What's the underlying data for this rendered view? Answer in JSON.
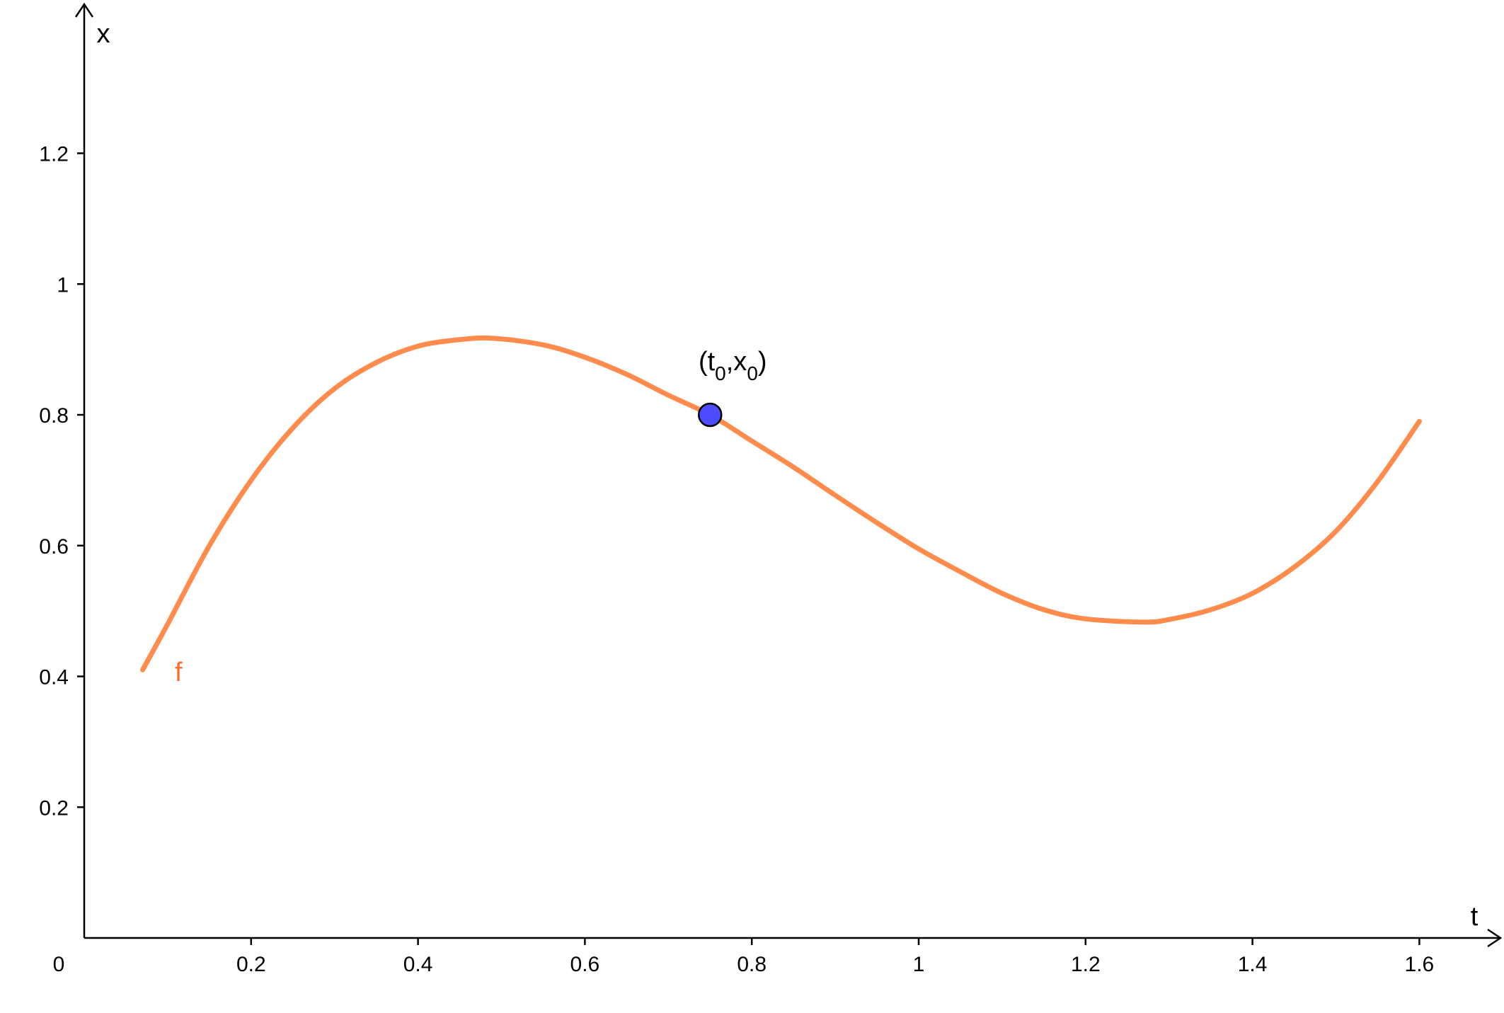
{
  "chart_data": {
    "type": "line",
    "xlabel": "t",
    "ylabel": "x",
    "origin_label": "0",
    "xlim": [
      0,
      1.7
    ],
    "ylim": [
      0,
      1.42
    ],
    "x_ticks": [
      0.2,
      0.4,
      0.6,
      0.8,
      1,
      1.2,
      1.4,
      1.6
    ],
    "x_tick_labels": [
      "0.2",
      "0.4",
      "0.6",
      "0.8",
      "1",
      "1.2",
      "1.4",
      "1.6"
    ],
    "y_ticks": [
      0.2,
      0.4,
      0.6,
      0.8,
      1,
      1.2
    ],
    "y_tick_labels": [
      "0.2",
      "0.4",
      "0.6",
      "0.8",
      "1",
      "1.2"
    ],
    "grid": false,
    "series": [
      {
        "name": "f",
        "color": "#ff8c4d",
        "label_color": "#ff6a2b",
        "x": [
          0.07,
          0.1,
          0.15,
          0.2,
          0.25,
          0.3,
          0.35,
          0.4,
          0.45,
          0.49,
          0.55,
          0.6,
          0.65,
          0.7,
          0.75,
          0.8,
          0.85,
          0.9,
          0.95,
          1.0,
          1.05,
          1.1,
          1.15,
          1.2,
          1.27,
          1.3,
          1.35,
          1.4,
          1.45,
          1.5,
          1.55,
          1.6
        ],
        "y": [
          0.41,
          0.48,
          0.6,
          0.7,
          0.78,
          0.84,
          0.88,
          0.905,
          0.915,
          0.917,
          0.907,
          0.888,
          0.862,
          0.83,
          0.8,
          0.76,
          0.72,
          0.677,
          0.635,
          0.595,
          0.56,
          0.527,
          0.502,
          0.488,
          0.483,
          0.487,
          0.502,
          0.527,
          0.567,
          0.622,
          0.698,
          0.79
        ]
      }
    ],
    "point": {
      "t": 0.75,
      "x": 0.8,
      "label_open": "(t",
      "label_sub1": "0",
      "label_mid": ",x",
      "label_sub2": "0",
      "label_close": ")",
      "fill": "#4d4dff"
    }
  }
}
